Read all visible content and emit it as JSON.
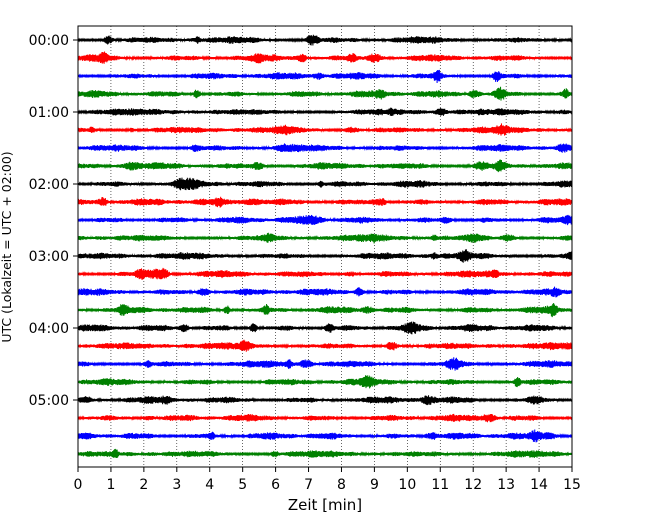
{
  "chart_data": {
    "type": "line",
    "title": "",
    "xlabel": "Zeit  [min]",
    "ylabel": "UTC (Lokalzeit = UTC + 02:00)",
    "xlim": [
      0,
      15
    ],
    "x_ticks": [
      0,
      1,
      2,
      3,
      4,
      5,
      6,
      7,
      8,
      9,
      10,
      11,
      12,
      13,
      14,
      15
    ],
    "y_ticks": [
      "00:00",
      "01:00",
      "02:00",
      "03:00",
      "04:00",
      "05:00"
    ],
    "grid": "vertical-dotted",
    "legend": "none",
    "trace_interval_minutes": 15,
    "trace_count": 24,
    "trace_colors": [
      "#000000",
      "#ff0000",
      "#0000ff",
      "#008000"
    ],
    "traces": [
      {
        "start": "00:00",
        "color": "#000000"
      },
      {
        "start": "00:15",
        "color": "#ff0000"
      },
      {
        "start": "00:30",
        "color": "#0000ff"
      },
      {
        "start": "00:45",
        "color": "#008000"
      },
      {
        "start": "01:00",
        "color": "#000000"
      },
      {
        "start": "01:15",
        "color": "#ff0000"
      },
      {
        "start": "01:30",
        "color": "#0000ff"
      },
      {
        "start": "01:45",
        "color": "#008000"
      },
      {
        "start": "02:00",
        "color": "#000000"
      },
      {
        "start": "02:15",
        "color": "#ff0000"
      },
      {
        "start": "02:30",
        "color": "#0000ff"
      },
      {
        "start": "02:45",
        "color": "#008000"
      },
      {
        "start": "03:00",
        "color": "#000000"
      },
      {
        "start": "03:15",
        "color": "#ff0000"
      },
      {
        "start": "03:30",
        "color": "#0000ff"
      },
      {
        "start": "03:45",
        "color": "#008000"
      },
      {
        "start": "04:00",
        "color": "#000000"
      },
      {
        "start": "04:15",
        "color": "#ff0000"
      },
      {
        "start": "04:30",
        "color": "#0000ff"
      },
      {
        "start": "04:45",
        "color": "#008000"
      },
      {
        "start": "05:00",
        "color": "#000000"
      },
      {
        "start": "05:15",
        "color": "#ff0000"
      },
      {
        "start": "05:30",
        "color": "#0000ff"
      },
      {
        "start": "05:45",
        "color": "#008000"
      }
    ]
  }
}
